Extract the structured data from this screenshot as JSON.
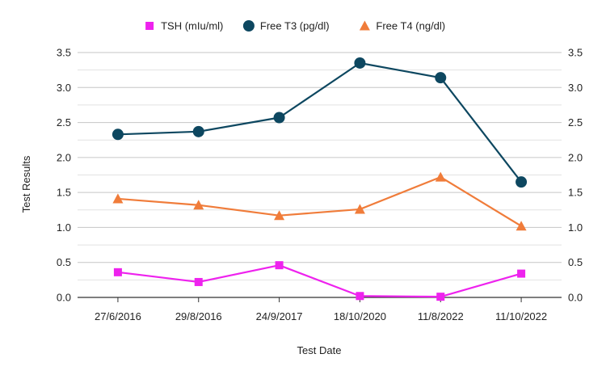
{
  "chart_data": {
    "type": "line",
    "title": "",
    "xlabel": "Test Date",
    "ylabel": "Test Results",
    "categories": [
      "27/6/2016",
      "29/8/2016",
      "24/9/2017",
      "18/10/2020",
      "11/8/2022",
      "11/10/2022"
    ],
    "ylim": [
      0,
      3.5
    ],
    "yticks": [
      "0.0",
      "0.5",
      "1.0",
      "1.5",
      "2.0",
      "2.5",
      "3.0",
      "3.5"
    ],
    "y2ticks": [
      "0.0",
      "0.5",
      "1.0",
      "1.5",
      "2.0",
      "2.5",
      "3.0",
      "3.5"
    ],
    "grid": true,
    "legend_position": "top",
    "series": [
      {
        "name": "TSH (mIu/ml)",
        "marker": "square",
        "color": "#ee22ee",
        "values": [
          0.36,
          0.22,
          0.46,
          0.02,
          0.01,
          0.34
        ]
      },
      {
        "name": "Free T3 (pg/dl)",
        "marker": "circle",
        "color": "#0d4760",
        "values": [
          2.33,
          2.37,
          2.57,
          3.35,
          3.14,
          1.65
        ]
      },
      {
        "name": "Free T4 (ng/dl)",
        "marker": "triangle",
        "color": "#f07c3a",
        "values": [
          1.41,
          1.32,
          1.17,
          1.26,
          1.72,
          1.02
        ]
      }
    ]
  }
}
